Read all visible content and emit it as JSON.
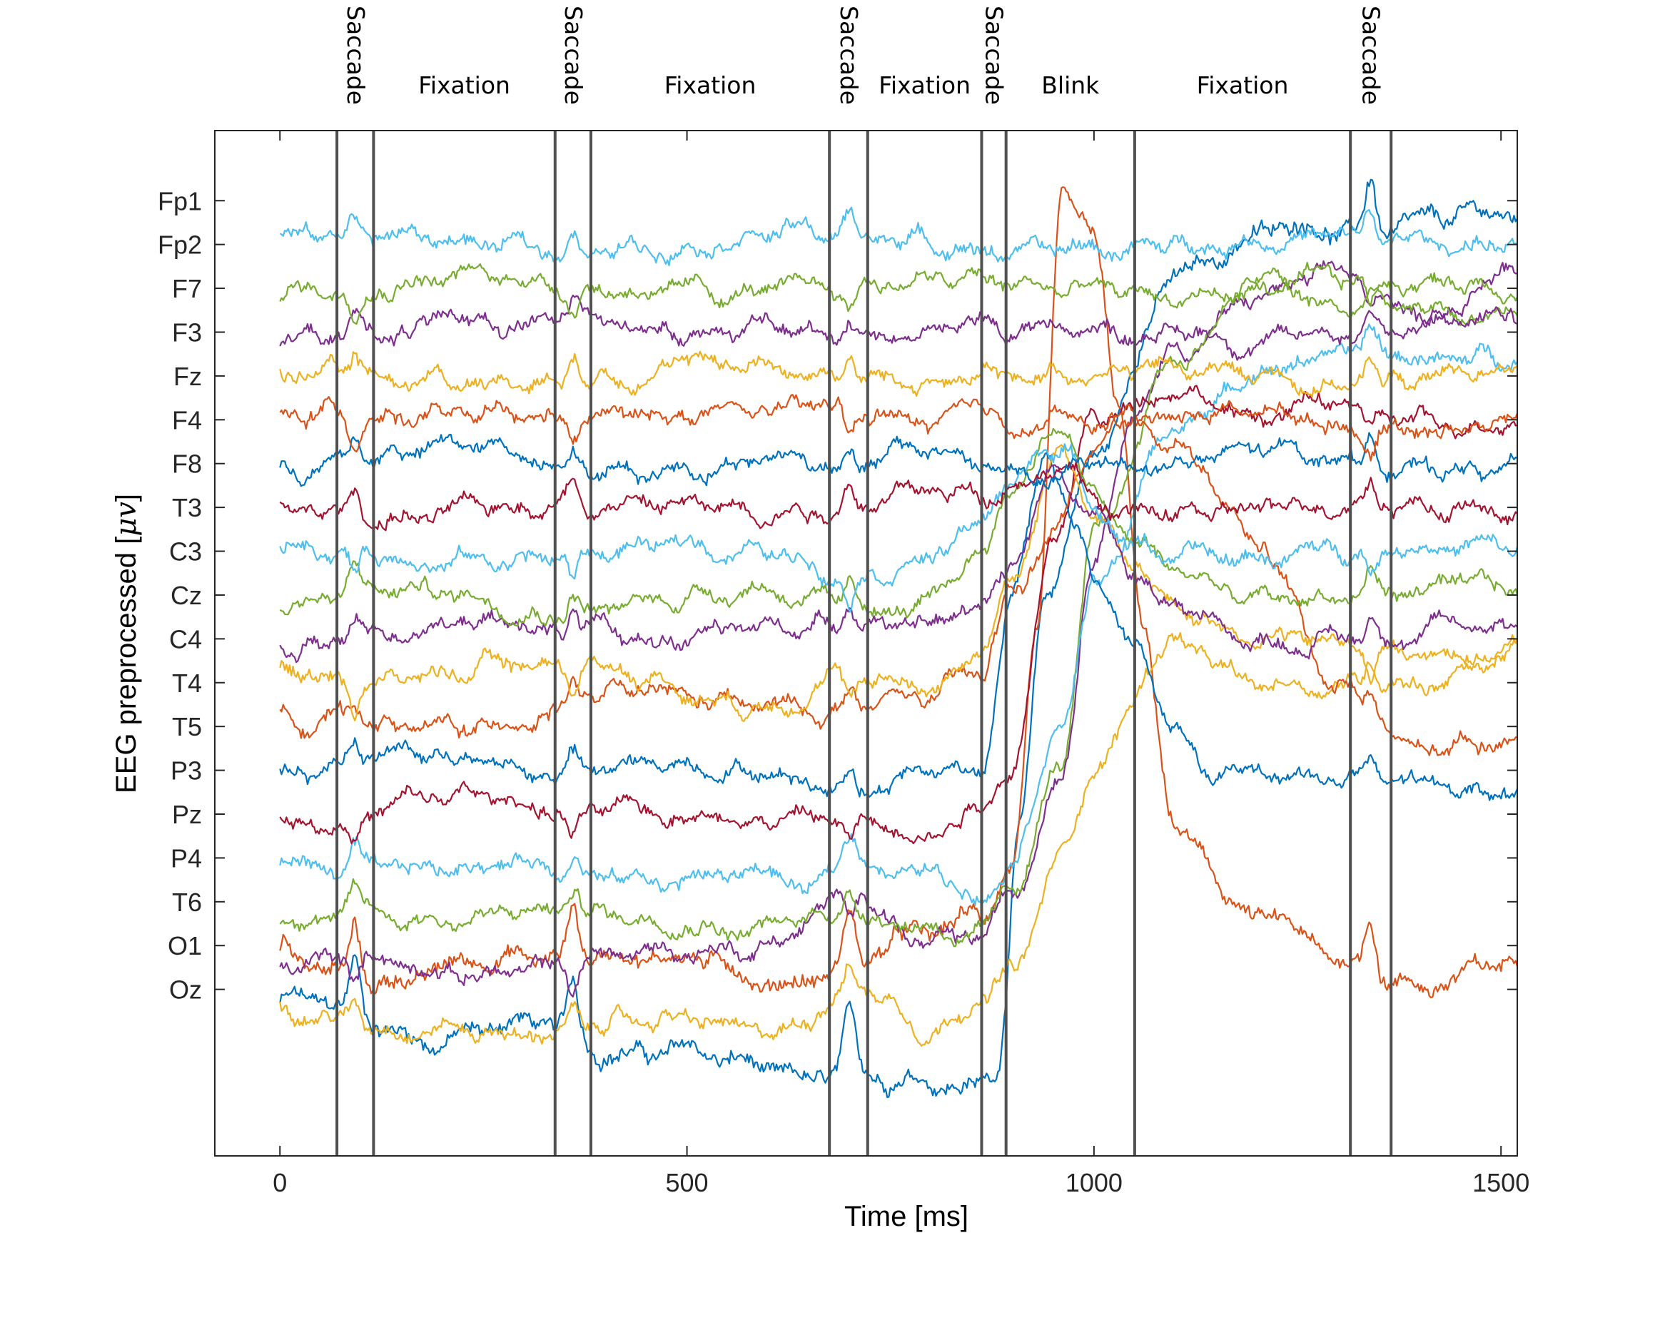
{
  "chart_data": {
    "type": "line",
    "title": "",
    "xlabel": "Time [ms]",
    "ylabel_parts": [
      "EEG preprocessed [",
      "μ",
      "v",
      "]"
    ],
    "xlim": [
      -80,
      1520
    ],
    "xticks": [
      0,
      500,
      1000,
      1500
    ],
    "channels": [
      "Fp1",
      "Fp2",
      "F7",
      "F3",
      "Fz",
      "F4",
      "F8",
      "T3",
      "C3",
      "Cz",
      "C4",
      "T4",
      "T5",
      "P3",
      "Pz",
      "P4",
      "T6",
      "O1",
      "Oz"
    ],
    "series_colors": [
      "#0072BD",
      "#D95319",
      "#EDB120",
      "#7E2F8E",
      "#77AC30",
      "#4DBEEE",
      "#A2142F"
    ],
    "boundary_color": "#505050",
    "event_boundaries_ms": [
      70,
      115,
      338,
      382,
      675,
      722,
      862,
      892,
      1050,
      1315,
      1365
    ],
    "events": [
      {
        "label": "Saccade",
        "orientation": "vertical",
        "start": 70,
        "end": 115
      },
      {
        "label": "Fixation",
        "orientation": "horizontal",
        "start": 115,
        "end": 338
      },
      {
        "label": "Saccade",
        "orientation": "vertical",
        "start": 338,
        "end": 382
      },
      {
        "label": "Fixation",
        "orientation": "horizontal",
        "start": 382,
        "end": 675
      },
      {
        "label": "Saccade",
        "orientation": "vertical",
        "start": 675,
        "end": 722
      },
      {
        "label": "Fixation",
        "orientation": "horizontal",
        "start": 722,
        "end": 862
      },
      {
        "label": "Saccade",
        "orientation": "vertical",
        "start": 862,
        "end": 892
      },
      {
        "label": "Blink",
        "orientation": "horizontal",
        "start": 892,
        "end": 1050
      },
      {
        "label": "Fixation",
        "orientation": "horizontal",
        "start": 1050,
        "end": 1315
      },
      {
        "label": "Saccade",
        "orientation": "vertical",
        "start": 1315,
        "end": 1365
      }
    ],
    "trace_time_range_ms": [
      0,
      1520
    ],
    "trace_count": 20,
    "trace_offset_levels": [
      -2.3,
      -1.3,
      0,
      1,
      2,
      3,
      4,
      5,
      6,
      7,
      8,
      9,
      10,
      11,
      12,
      13,
      14,
      15,
      16,
      17
    ],
    "ylim": [
      -3.8,
      19.6
    ],
    "trace_keypoints": [
      {
        "t": [
          0,
          100,
          200,
          300,
          400,
          500,
          550,
          650,
          700,
          750,
          850,
          880,
          910,
          940,
          1000,
          1100,
          1200,
          1300,
          1400,
          1520
        ],
        "y": [
          -0.3,
          -0.7,
          -1,
          -0.9,
          -1.2,
          -1.5,
          -1.8,
          -2,
          -1.8,
          -2.1,
          -2.2,
          -1.6,
          4,
          9,
          12,
          16.4,
          17.2,
          17.3,
          17.5,
          17.5
        ]
      },
      {
        "t": [
          0,
          100,
          200,
          300,
          400,
          500,
          600,
          700,
          800,
          860,
          900,
          930,
          960,
          1000,
          1030,
          1060,
          1100,
          1200,
          1300,
          1400,
          1520
        ],
        "y": [
          0.8,
          0.3,
          0.4,
          0.7,
          1,
          0.6,
          0.3,
          0.6,
          1.1,
          1.8,
          3,
          8,
          17.8,
          17,
          13,
          8,
          3.6,
          1.7,
          0.5,
          0.3,
          0.5
        ]
      },
      {
        "t": [
          0,
          200,
          400,
          600,
          700,
          800,
          860,
          900,
          960,
          1000,
          1100,
          1200,
          1300,
          1400,
          1520
        ],
        "y": [
          -0.3,
          -1,
          -0.8,
          -0.9,
          0,
          -0.9,
          0,
          0.5,
          3,
          5,
          8,
          7,
          6.8,
          7.2,
          7.7
        ]
      },
      {
        "t": [
          0,
          200,
          400,
          600,
          700,
          800,
          860,
          900,
          960,
          1000,
          1050,
          1100,
          1200,
          1300,
          1400,
          1520
        ],
        "y": [
          0.6,
          0.5,
          0.6,
          1.2,
          2,
          1,
          1.3,
          2.3,
          5,
          10,
          13,
          14.7,
          15.9,
          16.1,
          15.5,
          16.5
        ]
      },
      {
        "t": [
          0,
          200,
          400,
          500,
          600,
          700,
          800,
          860,
          900,
          960,
          1000,
          1100,
          1200,
          1300,
          1400,
          1520
        ],
        "y": [
          1.5,
          1.8,
          1.6,
          1.8,
          1.4,
          1.6,
          1.6,
          1.3,
          2.3,
          5,
          10,
          14.5,
          16.3,
          15.3,
          15.5,
          15.6
        ]
      },
      {
        "t": [
          0,
          200,
          400,
          600,
          650,
          700,
          800,
          870,
          900,
          960,
          1000,
          1100,
          1200,
          1300,
          1400,
          1520
        ],
        "y": [
          2.8,
          2.8,
          2.7,
          2.6,
          2,
          3,
          2.8,
          2.3,
          3.2,
          6,
          9,
          13,
          14.2,
          14.3,
          14.5,
          14.6
        ]
      },
      {
        "t": [
          0,
          200,
          400,
          600,
          700,
          800,
          860,
          900,
          950,
          1000,
          1100,
          1200,
          1300,
          1400,
          1520
        ],
        "y": [
          4,
          4.2,
          4.2,
          3.8,
          4,
          3.8,
          4.2,
          5,
          10,
          13,
          14,
          13,
          13.2,
          13,
          13.2
        ]
      },
      {
        "t": [
          0,
          200,
          400,
          600,
          700,
          800,
          860,
          900,
          940,
          980,
          1000,
          1050,
          1100,
          1150,
          1200,
          1300,
          1400,
          1520
        ],
        "y": [
          5,
          5.3,
          5,
          5,
          4.8,
          5,
          4.8,
          9,
          12,
          10.5,
          9.5,
          8,
          6,
          4.8,
          4.8,
          4.7,
          4.8,
          4.6
        ]
      },
      {
        "t": [
          0,
          200,
          400,
          600,
          700,
          800,
          860,
          900,
          950,
          1000,
          1050,
          1100,
          1200,
          1300,
          1400,
          1520
        ],
        "y": [
          6,
          6.1,
          6.5,
          6.6,
          6.4,
          6.5,
          7,
          9,
          10.5,
          12.5,
          13,
          12.5,
          10,
          7,
          5.7,
          5.8
        ]
      },
      {
        "t": [
          0,
          200,
          400,
          600,
          700,
          800,
          860,
          900,
          960,
          1000,
          1050,
          1100,
          1200,
          1300,
          1400,
          1520
        ],
        "y": [
          7.2,
          7.3,
          7.3,
          6.7,
          7,
          6.8,
          7.8,
          9.5,
          12.5,
          11,
          9.5,
          8.5,
          8,
          8,
          7.8,
          7.6
        ]
      },
      {
        "t": [
          0,
          200,
          400,
          600,
          700,
          800,
          860,
          900,
          950,
          1000,
          1050,
          1100,
          1200,
          1300,
          1400,
          1520
        ],
        "y": [
          8,
          8.2,
          8.2,
          8.1,
          8.3,
          8.3,
          9,
          10,
          12,
          10.8,
          9.2,
          8.6,
          8,
          8.2,
          8.2,
          8.2
        ]
      },
      {
        "t": [
          0,
          200,
          400,
          600,
          700,
          800,
          860,
          900,
          960,
          1000,
          1050,
          1100,
          1200,
          1300,
          1400,
          1520
        ],
        "y": [
          8.8,
          9,
          8.8,
          9,
          8.7,
          8.9,
          10,
          11.5,
          12.8,
          11,
          10,
          9.5,
          9,
          9.1,
          9,
          8.9
        ]
      },
      {
        "t": [
          0,
          200,
          400,
          600,
          700,
          800,
          860,
          900,
          960,
          1000,
          1050,
          1100,
          1200,
          1300,
          1400,
          1520
        ],
        "y": [
          10,
          10,
          9.9,
          10,
          9.8,
          9.9,
          10.5,
          11.5,
          12.3,
          11,
          10.2,
          10,
          10,
          10,
          10,
          10
        ]
      },
      {
        "t": [
          0,
          200,
          400,
          600,
          700,
          800,
          860,
          900,
          960,
          1000,
          1050,
          1100,
          1200,
          1300,
          1400,
          1520
        ],
        "y": [
          11,
          10.9,
          11,
          11.2,
          11.1,
          11.2,
          11.1,
          11.5,
          12,
          11.3,
          11,
          11,
          10.9,
          11,
          11,
          11
        ]
      },
      {
        "t": [
          0,
          200,
          400,
          600,
          700,
          800,
          860,
          900,
          960,
          1000,
          1050,
          1100,
          1200,
          1300,
          1400,
          1520
        ],
        "y": [
          12,
          12.2,
          12,
          12.2,
          11.8,
          12.2,
          12,
          11.8,
          11.8,
          12.2,
          12.1,
          12,
          12.1,
          12,
          12,
          12.1
        ]
      },
      {
        "t": [
          0,
          200,
          400,
          600,
          700,
          800,
          860,
          900,
          960,
          1000,
          1050,
          1100,
          1200,
          1300,
          1400,
          1520
        ],
        "y": [
          13,
          13,
          13.2,
          13,
          13.1,
          13,
          13.3,
          13,
          13.2,
          12.8,
          12.9,
          13,
          13.1,
          13,
          13,
          13
        ]
      },
      {
        "t": [
          0,
          200,
          400,
          600,
          700,
          800,
          860,
          900,
          960,
          1000,
          1050,
          1100,
          1200,
          1300,
          1400,
          1520
        ],
        "y": [
          14,
          14.1,
          14,
          14.2,
          14.1,
          14,
          14,
          13.9,
          14,
          14,
          14,
          14,
          14.1,
          14,
          14,
          14.2
        ]
      },
      {
        "t": [
          0,
          200,
          400,
          600,
          700,
          800,
          860,
          900,
          960,
          1000,
          1050,
          1100,
          1200,
          1300,
          1400,
          1520
        ],
        "y": [
          15,
          15.2,
          15,
          15.2,
          15.1,
          15,
          15,
          14.9,
          15,
          15,
          15,
          15.1,
          15,
          15.1,
          15,
          15.2
        ]
      },
      {
        "t": [
          0,
          200,
          400,
          600,
          700,
          800,
          860,
          900,
          960,
          1000,
          1050,
          1100,
          1200,
          1300,
          1400,
          1520
        ],
        "y": [
          16,
          16.1,
          16.1,
          16,
          16,
          16,
          16,
          16,
          16,
          16.1,
          16,
          16,
          16,
          16,
          16,
          16.1
        ]
      },
      {
        "t": [
          0,
          200,
          400,
          600,
          700,
          800,
          860,
          900,
          960,
          1000,
          1050,
          1100,
          1200,
          1300,
          1400,
          1520
        ],
        "y": [
          17,
          17.1,
          17,
          17.2,
          17,
          17.1,
          17,
          17,
          17,
          17.1,
          17,
          17,
          17,
          17,
          17,
          17.2
        ]
      }
    ]
  }
}
